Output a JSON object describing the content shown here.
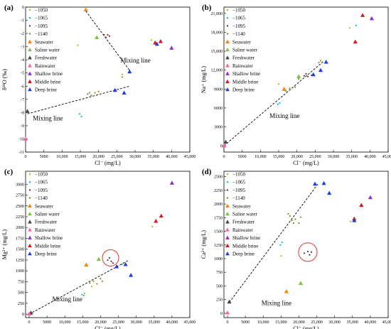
{
  "legend": [
    {
      "label": "−1050",
      "marker": "dot",
      "color": "#b8b800"
    },
    {
      "label": "−1065",
      "marker": "dot",
      "color": "#00bcd4"
    },
    {
      "label": "−1095",
      "marker": "dot",
      "color": "#6d2c2c"
    },
    {
      "label": "−1140",
      "marker": "dot",
      "color": "#8a8a1a"
    },
    {
      "label": "Seawater",
      "marker": "triangle",
      "color": "#ff7f00"
    },
    {
      "label": "Saline water",
      "marker": "triangle",
      "color": "#7dc242"
    },
    {
      "label": "Freshwater",
      "marker": "triangle",
      "color": "#444444"
    },
    {
      "label": "Rainwater",
      "marker": "triangle",
      "color": "#ff5fa8"
    },
    {
      "label": "Shallow brine",
      "marker": "triangle",
      "color": "#8a2be2"
    },
    {
      "label": "Middle brine",
      "marker": "triangle",
      "color": "#e0141e"
    },
    {
      "label": "Deep brine",
      "marker": "triangle",
      "color": "#1a3fe0"
    }
  ],
  "chart_data": [
    {
      "panel": "(a)",
      "type": "scatter",
      "xlabel": "Cl⁻ (mg/L)",
      "ylabel": "δ¹⁸O (‰)",
      "xlim": [
        0,
        45000
      ],
      "ylim": [
        -11,
        0
      ],
      "xticks": [
        0,
        5000,
        10000,
        15000,
        20000,
        25000,
        30000,
        35000,
        40000,
        45000
      ],
      "yticks": [
        -11,
        -10,
        -9,
        -8,
        -7,
        -6,
        -5,
        -4,
        -3,
        -2,
        -1,
        0
      ],
      "series": [
        {
          "name": "−1050",
          "points": [
            [
              14300,
              -2.9
            ],
            [
              34500,
              -2.5
            ],
            [
              26500,
              -5.1
            ]
          ]
        },
        {
          "name": "−1065",
          "points": [
            [
              14800,
              -8.1
            ],
            [
              15300,
              -8.3
            ]
          ]
        },
        {
          "name": "−1095",
          "points": [
            [
              21500,
              -2.1
            ],
            [
              22000,
              -2.3
            ],
            [
              22500,
              -2.1
            ],
            [
              23000,
              -2.2
            ]
          ]
        },
        {
          "name": "−1140",
          "points": [
            [
              17000,
              -6.6
            ],
            [
              17500,
              -6.5
            ],
            [
              18000,
              -6.7
            ],
            [
              19000,
              -6.5
            ],
            [
              20000,
              -6.4
            ],
            [
              20500,
              -6.6
            ],
            [
              26500,
              -5.3
            ]
          ]
        },
        {
          "name": "Seawater",
          "points": [
            [
              16500,
              -0.2
            ]
          ]
        },
        {
          "name": "Saline water",
          "points": [
            [
              19500,
              -2.3
            ]
          ]
        },
        {
          "name": "Freshwater",
          "points": [
            [
              500,
              -7.9
            ]
          ]
        },
        {
          "name": "Rainwater",
          "points": [
            [
              0,
              -10.0
            ]
          ]
        },
        {
          "name": "Shallow brine",
          "points": [
            [
              40000,
              -3.1
            ]
          ]
        },
        {
          "name": "Middle brine",
          "points": [
            [
              35500,
              -2.7
            ],
            [
              37000,
              -2.6
            ]
          ]
        },
        {
          "name": "Deep brine",
          "points": [
            [
              24500,
              -6.3
            ],
            [
              27000,
              -6.5
            ],
            [
              28500,
              -4.9
            ],
            [
              36000,
              -2.8
            ]
          ]
        }
      ],
      "mixing_lines": [
        {
          "from": [
            500,
            -8.1
          ],
          "to": [
            28500,
            -6.0
          ]
        },
        {
          "from": [
            16500,
            -0.3
          ],
          "to": [
            28500,
            -4.8
          ]
        }
      ],
      "annotations": [
        {
          "text": "Mixing line",
          "at": [
            26000,
            -4.2
          ]
        },
        {
          "text": "Mixing line",
          "at": [
            2000,
            -8.6
          ]
        }
      ]
    },
    {
      "panel": "(b)",
      "type": "scatter",
      "xlabel": "Cl⁻ (mg/L)",
      "ylabel": "Na⁺ (mg/L)",
      "xlim": [
        0,
        45000
      ],
      "ylim": [
        -1000,
        22000
      ],
      "xticks": [
        0,
        5000,
        10000,
        15000,
        20000,
        25000,
        30000,
        35000,
        40000,
        45000
      ],
      "yticks": [
        0,
        3000,
        6000,
        9000,
        12000,
        15000,
        18000,
        21000
      ],
      "series": [
        {
          "name": "−1050",
          "points": [
            [
              15000,
              9800
            ],
            [
              34500,
              18700
            ]
          ]
        },
        {
          "name": "−1065",
          "points": [
            [
              14800,
              6600
            ],
            [
              15300,
              6800
            ],
            [
              36200,
              19100
            ]
          ]
        },
        {
          "name": "−1095",
          "points": [
            [
              22000,
              11100
            ],
            [
              22500,
              11400
            ],
            [
              23000,
              11000
            ],
            [
              24000,
              11200
            ]
          ]
        },
        {
          "name": "−1140",
          "points": [
            [
              17000,
              8700
            ],
            [
              18000,
              9100
            ],
            [
              19500,
              9300
            ],
            [
              20500,
              10600
            ],
            [
              26000,
              13200
            ],
            [
              26500,
              13500
            ]
          ]
        },
        {
          "name": "Seawater",
          "points": [
            [
              16500,
              9000
            ]
          ]
        },
        {
          "name": "Saline water",
          "points": [
            [
              20500,
              11000
            ]
          ]
        },
        {
          "name": "Freshwater",
          "points": [
            [
              500,
              600
            ]
          ]
        },
        {
          "name": "Rainwater",
          "points": [
            [
              0,
              0
            ]
          ]
        },
        {
          "name": "Shallow brine",
          "points": [
            [
              40500,
              20200
            ]
          ]
        },
        {
          "name": "Middle brine",
          "points": [
            [
              36000,
              16500
            ],
            [
              38000,
              20700
            ]
          ]
        },
        {
          "name": "Deep brine",
          "points": [
            [
              24500,
              11300
            ],
            [
              26500,
              12000
            ],
            [
              28000,
              13300
            ]
          ]
        }
      ],
      "mixing_lines": [
        {
          "from": [
            0,
            0
          ],
          "to": [
            27500,
            13500
          ]
        }
      ],
      "annotations": [
        {
          "text": "Mixing line",
          "at": [
            12500,
            4400
          ]
        }
      ]
    },
    {
      "panel": "(c)",
      "type": "scatter",
      "xlabel": "Cl⁻ (mg/L)",
      "ylabel": "Mg²⁺ (mg/L)",
      "xlim": [
        -1000,
        45000
      ],
      "ylim": [
        -80,
        3300
      ],
      "xticks": [
        0,
        5000,
        10000,
        15000,
        20000,
        25000,
        30000,
        35000,
        40000,
        45000
      ],
      "yticks": [
        0,
        250,
        500,
        750,
        1000,
        1250,
        1500,
        1750,
        2000,
        2250,
        2500,
        2750,
        3000
      ],
      "series": [
        {
          "name": "−1050",
          "points": [
            [
              15500,
              480
            ],
            [
              17500,
              640
            ],
            [
              34500,
              2020
            ]
          ]
        },
        {
          "name": "−1065",
          "points": [
            [
              14800,
              450
            ],
            [
              15300,
              430
            ]
          ]
        },
        {
          "name": "−1095",
          "points": [
            [
              22000,
              1250
            ],
            [
              22500,
              1300
            ],
            [
              23000,
              1220
            ],
            [
              23500,
              1180
            ]
          ]
        },
        {
          "name": "−1140",
          "points": [
            [
              17000,
              720
            ],
            [
              18000,
              760
            ],
            [
              19000,
              700
            ],
            [
              20000,
              820
            ],
            [
              20500,
              760
            ],
            [
              26000,
              1150
            ]
          ]
        },
        {
          "name": "Seawater",
          "points": [
            [
              16000,
              1140
            ]
          ]
        },
        {
          "name": "Saline water",
          "points": [
            [
              19500,
              1270
            ]
          ]
        },
        {
          "name": "Freshwater",
          "points": [
            [
              500,
              30
            ]
          ]
        },
        {
          "name": "Rainwater",
          "points": [
            [
              0,
              10
            ]
          ]
        },
        {
          "name": "Shallow brine",
          "points": [
            [
              40000,
              3030
            ]
          ]
        },
        {
          "name": "Middle brine",
          "points": [
            [
              35500,
              2150
            ],
            [
              37000,
              2270
            ]
          ]
        },
        {
          "name": "Deep brine",
          "points": [
            [
              24500,
              1100
            ],
            [
              27000,
              1150
            ],
            [
              28500,
              900
            ]
          ]
        }
      ],
      "circle": {
        "center": [
          22800,
          1300
        ],
        "radius_x": 2300
      },
      "mixing_lines": [
        {
          "from": [
            0,
            0
          ],
          "to": [
            28000,
            1250
          ]
        }
      ],
      "annotations": [
        {
          "text": "Mixing line",
          "at": [
            6500,
            300
          ]
        }
      ]
    },
    {
      "panel": "(d)",
      "type": "scatter",
      "xlabel": "Cl⁻ (mg/L)",
      "ylabel": "Ca²⁺ (mg/L)",
      "xlim": [
        -1000,
        45000
      ],
      "ylim": [
        -80,
        2600
      ],
      "xticks": [
        0,
        5000,
        10000,
        15000,
        20000,
        25000,
        30000,
        35000,
        40000,
        45000
      ],
      "yticks": [
        0,
        250,
        500,
        750,
        1000,
        1250,
        1500,
        1750,
        2000,
        2250,
        2500
      ],
      "series": [
        {
          "name": "−1050",
          "points": [
            [
              15000,
              1050
            ],
            [
              34500,
              1680
            ]
          ]
        },
        {
          "name": "−1065",
          "points": [
            [
              14800,
              1250
            ],
            [
              15300,
              1300
            ]
          ]
        },
        {
          "name": "−1095",
          "points": [
            [
              21500,
              1100
            ],
            [
              22500,
              1130
            ],
            [
              23000,
              1070
            ],
            [
              23500,
              1120
            ]
          ]
        },
        {
          "name": "−1140",
          "points": [
            [
              17000,
              1820
            ],
            [
              17500,
              1780
            ],
            [
              18000,
              1700
            ],
            [
              18500,
              1650
            ],
            [
              19000,
              1720
            ],
            [
              20000,
              1650
            ],
            [
              20500,
              1760
            ],
            [
              24500,
              2300
            ]
          ]
        },
        {
          "name": "Seawater",
          "points": [
            [
              16500,
              400
            ]
          ]
        },
        {
          "name": "Saline water",
          "points": [
            [
              20500,
              550
            ]
          ]
        },
        {
          "name": "Freshwater",
          "points": [
            [
              500,
              210
            ]
          ]
        },
        {
          "name": "Rainwater",
          "points": [
            [
              0,
              10
            ]
          ]
        },
        {
          "name": "Shallow brine",
          "points": [
            [
              40000,
              2120
            ]
          ]
        },
        {
          "name": "Middle brine",
          "points": [
            [
              35500,
              1730
            ],
            [
              37500,
              1980
            ]
          ]
        },
        {
          "name": "Deep brine",
          "points": [
            [
              24500,
              2370
            ],
            [
              27000,
              2380
            ],
            [
              28500,
              2200
            ],
            [
              35500,
              1700
            ]
          ]
        }
      ],
      "circle": {
        "center": [
          22500,
          1120
        ],
        "radius_x": 2600
      },
      "mixing_lines": [
        {
          "from": [
            500,
            200
          ],
          "to": [
            25500,
            2380
          ]
        }
      ],
      "annotations": [
        {
          "text": "Mixing line",
          "at": [
            9500,
            150
          ]
        }
      ]
    }
  ]
}
